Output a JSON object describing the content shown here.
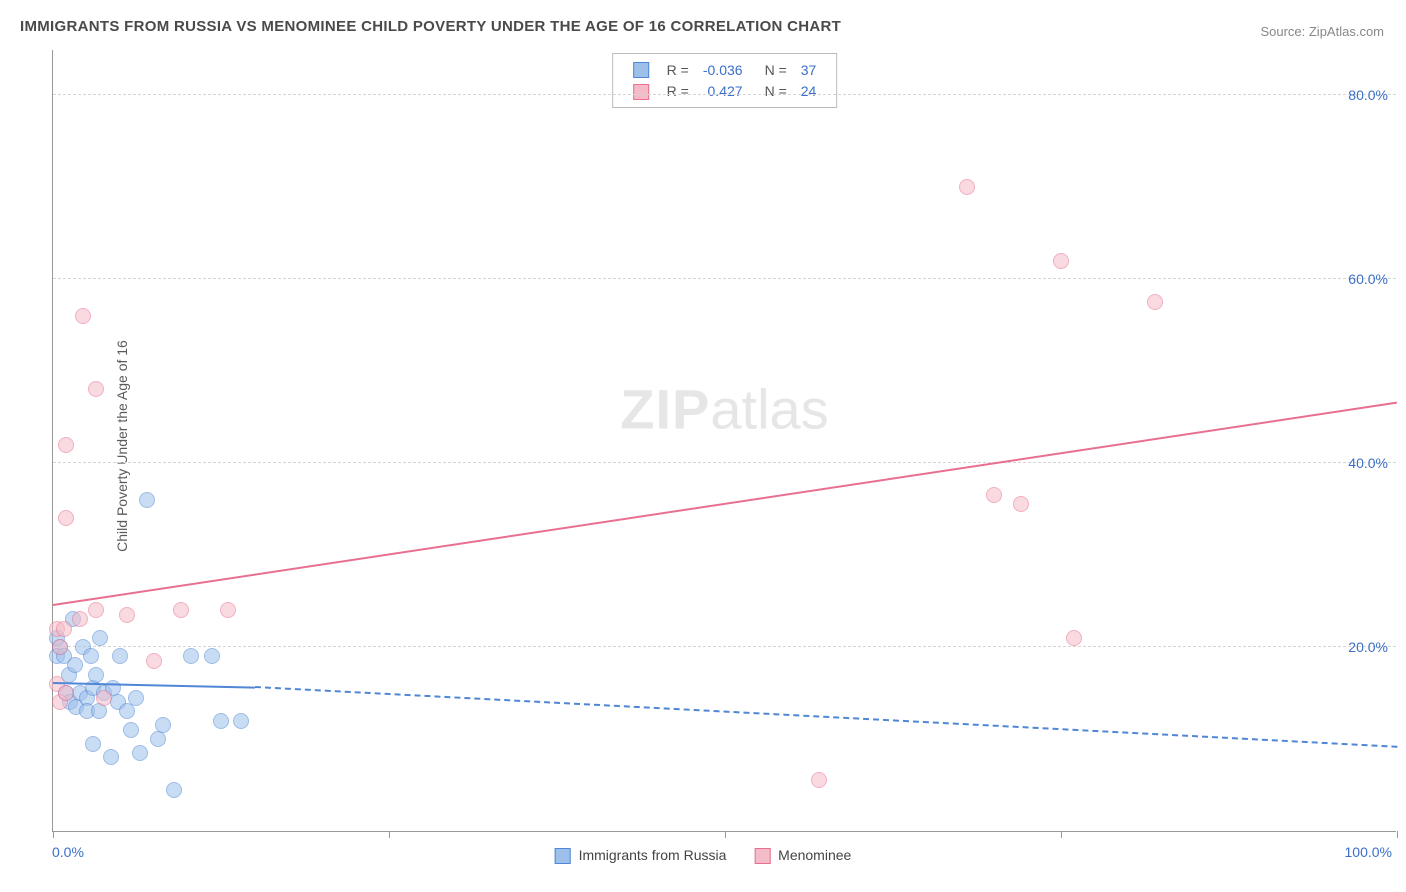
{
  "title": "IMMIGRANTS FROM RUSSIA VS MENOMINEE CHILD POVERTY UNDER THE AGE OF 16 CORRELATION CHART",
  "source": "Source: ZipAtlas.com",
  "ylabel": "Child Poverty Under the Age of 16",
  "watermark_a": "ZIP",
  "watermark_b": "atlas",
  "chart": {
    "type": "scatter",
    "xlim": [
      0,
      100
    ],
    "ylim": [
      0,
      85
    ],
    "y_ticks": [
      20,
      40,
      60,
      80
    ],
    "y_tick_labels": [
      "20.0%",
      "40.0%",
      "60.0%",
      "80.0%"
    ],
    "y_tick_color": "#3b6fc9",
    "x_tick_min_label": "0.0%",
    "x_tick_max_label": "100.0%",
    "x_tick_color": "#3b6fc9",
    "x_vticks_pct": [
      0,
      25,
      50,
      75,
      100
    ],
    "grid_color": "#d5d5d5",
    "background": "#ffffff",
    "marker_radius": 8,
    "marker_opacity": 0.55,
    "series": [
      {
        "name": "Immigrants from Russia",
        "fill": "#9cc0ea",
        "stroke": "#4f86d6",
        "r_label": "-0.036",
        "n_label": "37",
        "trend": {
          "x1": 0,
          "y1": 16,
          "x2_solid": 15,
          "y2_solid": 15.5,
          "x2": 100,
          "y2": 9
        },
        "points": [
          {
            "x": 0.5,
            "y": 20
          },
          {
            "x": 0.3,
            "y": 19
          },
          {
            "x": 0.3,
            "y": 21
          },
          {
            "x": 0.8,
            "y": 19
          },
          {
            "x": 1.0,
            "y": 15
          },
          {
            "x": 1.2,
            "y": 17
          },
          {
            "x": 1.5,
            "y": 23
          },
          {
            "x": 1.3,
            "y": 14
          },
          {
            "x": 1.7,
            "y": 13.5
          },
          {
            "x": 1.6,
            "y": 18
          },
          {
            "x": 2.0,
            "y": 15
          },
          {
            "x": 2.2,
            "y": 20
          },
          {
            "x": 2.5,
            "y": 14.5
          },
          {
            "x": 2.5,
            "y": 13
          },
          {
            "x": 2.8,
            "y": 19
          },
          {
            "x": 3.0,
            "y": 15.5
          },
          {
            "x": 3.0,
            "y": 9.5
          },
          {
            "x": 3.2,
            "y": 17
          },
          {
            "x": 3.4,
            "y": 13
          },
          {
            "x": 3.5,
            "y": 21
          },
          {
            "x": 3.8,
            "y": 15
          },
          {
            "x": 4.3,
            "y": 8
          },
          {
            "x": 4.5,
            "y": 15.5
          },
          {
            "x": 4.8,
            "y": 14
          },
          {
            "x": 5.0,
            "y": 19
          },
          {
            "x": 5.5,
            "y": 13
          },
          {
            "x": 5.8,
            "y": 11
          },
          {
            "x": 6.2,
            "y": 14.5
          },
          {
            "x": 6.5,
            "y": 8.5
          },
          {
            "x": 7.0,
            "y": 36
          },
          {
            "x": 7.8,
            "y": 10
          },
          {
            "x": 8.2,
            "y": 11.5
          },
          {
            "x": 9.0,
            "y": 4.5
          },
          {
            "x": 10.3,
            "y": 19
          },
          {
            "x": 11.8,
            "y": 19
          },
          {
            "x": 12.5,
            "y": 12
          },
          {
            "x": 14,
            "y": 12
          }
        ]
      },
      {
        "name": "Menominee",
        "fill": "#f3bcc8",
        "stroke": "#e86f8f",
        "r_label": "0.427",
        "n_label": "24",
        "trend": {
          "x1": 0,
          "y1": 24.5,
          "x2_solid": 100,
          "y2_solid": 46.5,
          "x2": 100,
          "y2": 46.5
        },
        "points": [
          {
            "x": 0.3,
            "y": 22
          },
          {
            "x": 0.3,
            "y": 16
          },
          {
            "x": 0.5,
            "y": 20
          },
          {
            "x": 0.5,
            "y": 14
          },
          {
            "x": 0.8,
            "y": 22
          },
          {
            "x": 1.0,
            "y": 42
          },
          {
            "x": 1.0,
            "y": 34
          },
          {
            "x": 1.0,
            "y": 15
          },
          {
            "x": 2.0,
            "y": 23
          },
          {
            "x": 2.2,
            "y": 56
          },
          {
            "x": 3.2,
            "y": 48
          },
          {
            "x": 3.2,
            "y": 24
          },
          {
            "x": 3.8,
            "y": 14.5
          },
          {
            "x": 5.5,
            "y": 23.5
          },
          {
            "x": 7.5,
            "y": 18.5
          },
          {
            "x": 9.5,
            "y": 24
          },
          {
            "x": 13.0,
            "y": 24
          },
          {
            "x": 57,
            "y": 5.5
          },
          {
            "x": 68,
            "y": 70
          },
          {
            "x": 70,
            "y": 36.5
          },
          {
            "x": 72,
            "y": 35.5
          },
          {
            "x": 75,
            "y": 62
          },
          {
            "x": 76,
            "y": 21
          },
          {
            "x": 82,
            "y": 57.5
          }
        ]
      }
    ]
  },
  "legend_top": {
    "r_prefix": "R =",
    "n_prefix": "N ="
  },
  "legend_bottom": {
    "a": "Immigrants from Russia",
    "b": "Menominee"
  }
}
